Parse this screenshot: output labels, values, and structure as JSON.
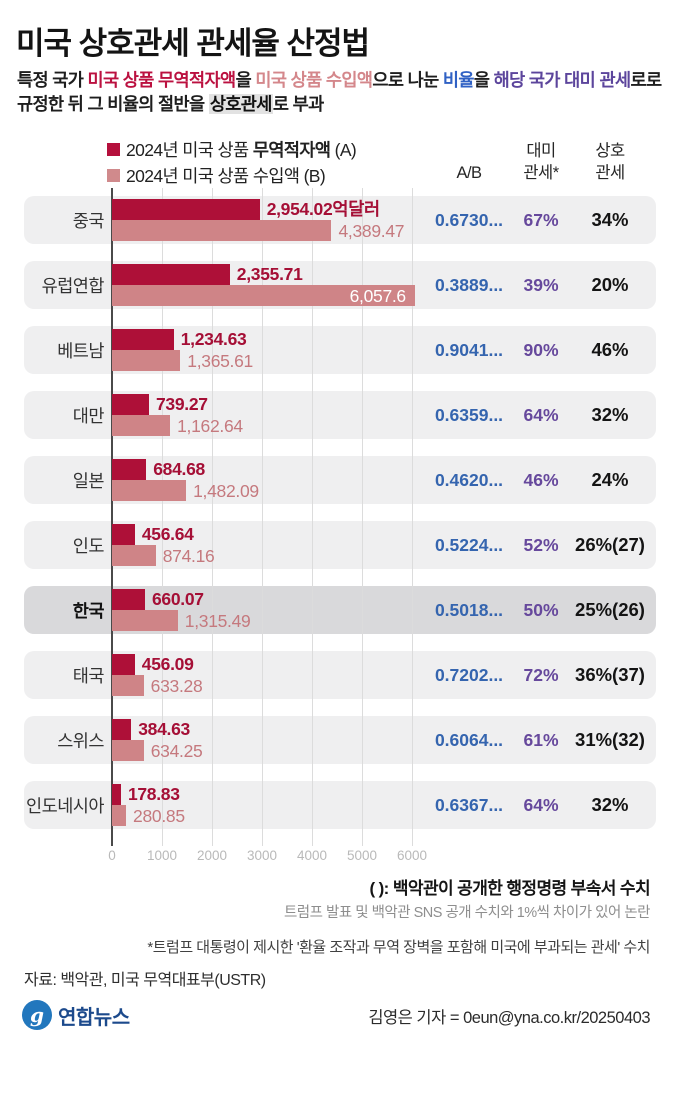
{
  "header": {
    "title": "미국 상호관세 관세율 산정법",
    "subtitle_segments": [
      {
        "text": "특정 국가 ",
        "kind": "plain"
      },
      {
        "text": "미국 상품 무역적자액",
        "kind": "crimson"
      },
      {
        "text": "을 ",
        "kind": "plain"
      },
      {
        "text": "미국 상품 수입액",
        "kind": "pink"
      },
      {
        "text": "으로 나눈 ",
        "kind": "plain"
      },
      {
        "text": "비율",
        "kind": "blue"
      },
      {
        "text": "을 ",
        "kind": "plain"
      },
      {
        "text": "해당 국가 대미 관세",
        "kind": "purple"
      },
      {
        "text": "로\n",
        "kind": "plain"
      },
      {
        "text": "규정한 뒤 그 비율의 절반을 ",
        "kind": "plain"
      },
      {
        "text": "상호관세",
        "kind": "highlight"
      },
      {
        "text": "로 부과",
        "kind": "plain"
      }
    ]
  },
  "legend": {
    "a_color": "#b5103c",
    "b_color": "#d08a8c",
    "a_segments": [
      {
        "text": "2024년 미국 상품 ",
        "bold": false
      },
      {
        "text": "무역적자액",
        "bold": true
      },
      {
        "text": " (A)",
        "bold": false
      }
    ],
    "b_segments": [
      {
        "text": "2024년 미국 상품 수입액 (B)",
        "bold": false
      }
    ]
  },
  "columns": {
    "ab": "A/B",
    "tariff_line1": "대미",
    "tariff_line2": "관세*",
    "recip_line1": "상호",
    "recip_line2": "관세"
  },
  "chart_data": {
    "type": "bar",
    "orientation": "horizontal",
    "unit": "억달러",
    "categories": [
      "중국",
      "유럽연합",
      "베트남",
      "대만",
      "일본",
      "인도",
      "한국",
      "태국",
      "스위스",
      "인도네시아"
    ],
    "series": [
      {
        "name": "2024년 미국 상품 무역적자액 (A)",
        "values": [
          2954.02,
          2355.71,
          1234.63,
          739.27,
          684.68,
          456.64,
          660.07,
          456.09,
          384.63,
          178.83
        ]
      },
      {
        "name": "2024년 미국 상품 수입액 (B)",
        "values": [
          4389.47,
          6057.6,
          1365.61,
          1162.64,
          1482.09,
          874.16,
          1315.49,
          633.28,
          634.25,
          280.85
        ]
      }
    ],
    "axis": {
      "ticks": [
        0,
        1000,
        2000,
        3000,
        4000,
        5000,
        6000
      ],
      "max": 6000,
      "grid": true
    },
    "rows": [
      {
        "country": "중국",
        "a": 2954.02,
        "a_label": "2,954.02억달러",
        "b": 4389.47,
        "b_label": "4,389.47",
        "ab": "0.6730...",
        "tariff": "67%",
        "reciprocal": "34%",
        "highlight": false,
        "b_inside": false
      },
      {
        "country": "유럽연합",
        "a": 2355.71,
        "a_label": "2,355.71",
        "b": 6057.6,
        "b_label": "6,057.6",
        "ab": "0.3889...",
        "tariff": "39%",
        "reciprocal": "20%",
        "highlight": false,
        "b_inside": true
      },
      {
        "country": "베트남",
        "a": 1234.63,
        "a_label": "1,234.63",
        "b": 1365.61,
        "b_label": "1,365.61",
        "ab": "0.9041...",
        "tariff": "90%",
        "reciprocal": "46%",
        "highlight": false,
        "b_inside": false
      },
      {
        "country": "대만",
        "a": 739.27,
        "a_label": "739.27",
        "b": 1162.64,
        "b_label": "1,162.64",
        "ab": "0.6359...",
        "tariff": "64%",
        "reciprocal": "32%",
        "highlight": false,
        "b_inside": false
      },
      {
        "country": "일본",
        "a": 684.68,
        "a_label": "684.68",
        "b": 1482.09,
        "b_label": "1,482.09",
        "ab": "0.4620...",
        "tariff": "46%",
        "reciprocal": "24%",
        "highlight": false,
        "b_inside": false
      },
      {
        "country": "인도",
        "a": 456.64,
        "a_label": "456.64",
        "b": 874.16,
        "b_label": "874.16",
        "ab": "0.5224...",
        "tariff": "52%",
        "reciprocal": "26%(27)",
        "highlight": false,
        "b_inside": false
      },
      {
        "country": "한국",
        "a": 660.07,
        "a_label": "660.07",
        "b": 1315.49,
        "b_label": "1,315.49",
        "ab": "0.5018...",
        "tariff": "50%",
        "reciprocal": "25%(26)",
        "highlight": true,
        "b_inside": false
      },
      {
        "country": "태국",
        "a": 456.09,
        "a_label": "456.09",
        "b": 633.28,
        "b_label": "633.28",
        "ab": "0.7202...",
        "tariff": "72%",
        "reciprocal": "36%(37)",
        "highlight": false,
        "b_inside": false
      },
      {
        "country": "스위스",
        "a": 384.63,
        "a_label": "384.63",
        "b": 634.25,
        "b_label": "634.25",
        "ab": "0.6064...",
        "tariff": "61%",
        "reciprocal": "31%(32)",
        "highlight": false,
        "b_inside": false
      },
      {
        "country": "인도네시아",
        "a": 178.83,
        "a_label": "178.83",
        "b": 280.85,
        "b_label": "280.85",
        "ab": "0.6367...",
        "tariff": "64%",
        "reciprocal": "32%",
        "highlight": false,
        "b_inside": false
      }
    ]
  },
  "footnotes": {
    "note1": "( ): 백악관이 공개한 행정명령 부속서 수치",
    "note2": "트럼프 발표 및 백악관 SNS 공개 수치와 1%씩 차이가 있어 논란",
    "note3": "*트럼프 대통령이 제시한 '환율 조작과 무역 장벽을 포함해 미국에 부과되는 관세' 수치",
    "source": "자료: 백악관, 미국 무역대표부(USTR)"
  },
  "footer": {
    "agency": "연합뉴스",
    "logo_glyph": "g",
    "byline": "김영은 기자 = 0eun@yna.co.kr/20250403"
  }
}
